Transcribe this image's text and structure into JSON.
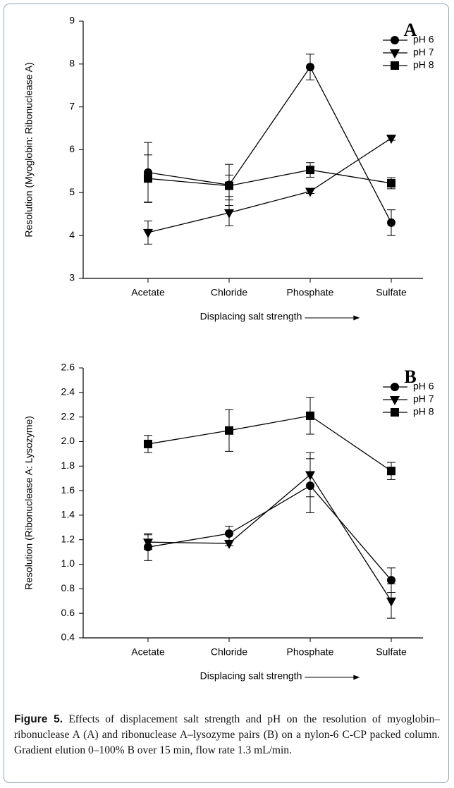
{
  "chart_data": [
    {
      "type": "line",
      "panel_label": "A",
      "categories": [
        "Acetate",
        "Chloride",
        "Phosphate",
        "Sulfate"
      ],
      "xlabel": "Displacing salt strength",
      "ylabel": "Resolution (Myoglobin: Ribonuclease A)",
      "ylim": [
        3,
        9
      ],
      "yticks": [
        3,
        4,
        5,
        6,
        7,
        8,
        9
      ],
      "legend": "upper right",
      "series": [
        {
          "name": "pH 6",
          "color": "#000000",
          "marker": "circle",
          "values": [
            5.47,
            5.18,
            7.93,
            4.3
          ],
          "errors": [
            0.7,
            0.48,
            0.3,
            0.3
          ]
        },
        {
          "name": "pH 7",
          "color": "#000000",
          "marker": "triangle-down",
          "values": [
            4.07,
            4.53,
            5.03,
            6.27
          ],
          "errors": [
            0.27,
            0.3,
            0.05,
            0.05
          ]
        },
        {
          "name": "pH 8",
          "color": "#000000",
          "marker": "square",
          "values": [
            5.33,
            5.16,
            5.53,
            5.22
          ],
          "errors": [
            0.55,
            0.25,
            0.17,
            0.13
          ]
        }
      ]
    },
    {
      "type": "line",
      "panel_label": "B",
      "categories": [
        "Acetate",
        "Chloride",
        "Phosphate",
        "Sulfate"
      ],
      "xlabel": "Displacing salt strength",
      "ylabel": "Resolution (Ribonuclease A: Lysozyme)",
      "ylim": [
        0.4,
        2.6
      ],
      "yticks": [
        0.4,
        0.6,
        0.8,
        {
          "value": 1.0,
          "label": "1.0"
        },
        1.2,
        1.4,
        1.6,
        1.8,
        {
          "value": 2.0,
          "label": "2.0"
        },
        2.2,
        2.4,
        2.6
      ],
      "legend": "upper right",
      "series": [
        {
          "name": "pH 6",
          "color": "#000000",
          "marker": "circle",
          "values": [
            1.14,
            1.25,
            1.64,
            0.87
          ],
          "errors": [
            0.11,
            0.06,
            0.22,
            0.1
          ]
        },
        {
          "name": "pH 7",
          "color": "#000000",
          "marker": "triangle-down",
          "values": [
            1.18,
            1.17,
            1.73,
            0.7
          ],
          "errors": [
            0.06,
            0.02,
            0.18,
            0.14
          ]
        },
        {
          "name": "pH 8",
          "color": "#000000",
          "marker": "square",
          "values": [
            1.98,
            2.09,
            2.21,
            1.76
          ],
          "errors": [
            0.07,
            0.17,
            0.15,
            0.07
          ]
        }
      ]
    }
  ],
  "caption": {
    "label": "Figure 5.",
    "text": "Effects of displacement salt strength and pH on the resolution of myoglobin–ribonuclease A (A) and ribonuclease A–lysozyme pairs (B) on a nylon-6 C-CP packed column. Gradient elution 0–100% B over 15 min, flow rate 1.3 mL/min."
  }
}
